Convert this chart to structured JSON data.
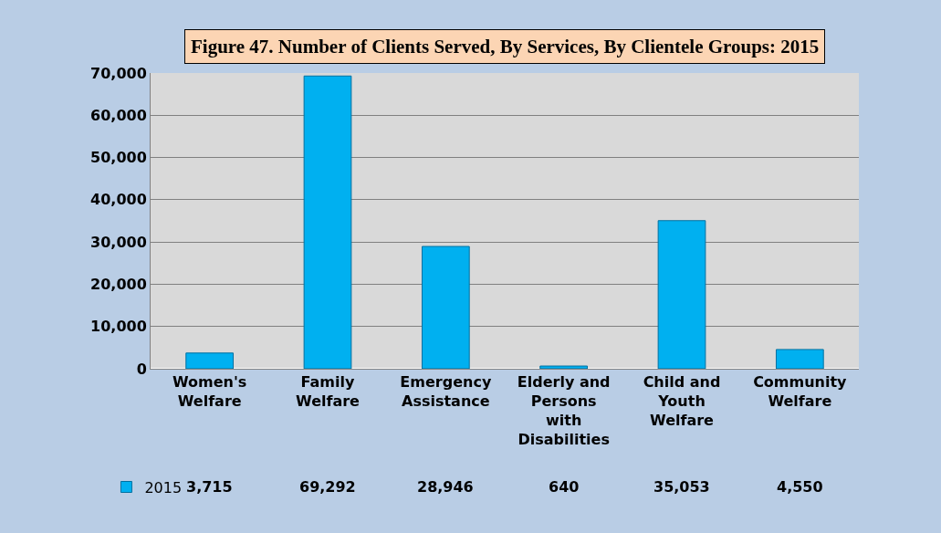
{
  "chart_data": {
    "type": "bar",
    "title": "Figure 47. Number of Clients Served, By Services, By Clientele Groups: 2015",
    "categories": [
      "Women's Welfare",
      "Family Welfare",
      "Emergency Assistance",
      "Elderly and Persons with Disabilities",
      "Child and Youth Welfare",
      "Community Welfare"
    ],
    "series": [
      {
        "name": "2015",
        "color": "#00b0f0",
        "values": [
          3715,
          69292,
          28946,
          640,
          35053,
          4550
        ]
      }
    ],
    "ylim": [
      0,
      70000
    ],
    "yticks": [
      {
        "value": 0,
        "label": "0"
      },
      {
        "value": 10000,
        "label": "10,000"
      },
      {
        "value": 20000,
        "label": "20,000"
      },
      {
        "value": 30000,
        "label": "30,000"
      },
      {
        "value": 40000,
        "label": "40,000"
      },
      {
        "value": 50000,
        "label": "50,000"
      },
      {
        "value": 60000,
        "label": "60,000"
      },
      {
        "value": 70000,
        "label": "70,000"
      }
    ],
    "grid": "y",
    "legend": "bottom left",
    "value_labels": [
      "3,715",
      "69,292",
      "28,946",
      "640",
      "35,053",
      "4,550"
    ]
  }
}
